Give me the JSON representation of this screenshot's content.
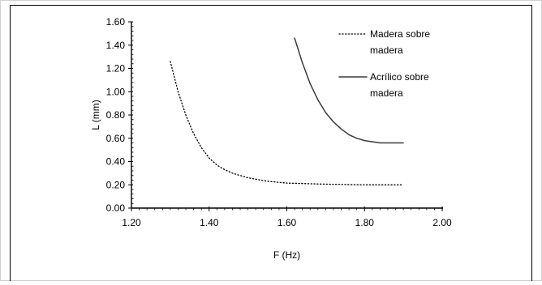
{
  "chart_data": {
    "type": "line",
    "xlabel": "F (Hz)",
    "ylabel": "L (mm)",
    "xlim": [
      1.2,
      2.0
    ],
    "ylim": [
      0.0,
      1.6
    ],
    "x_ticks": [
      "1.20",
      "1.40",
      "1.60",
      "1.80",
      "2.00"
    ],
    "y_ticks": [
      "0.00",
      "0.20",
      "0.40",
      "0.60",
      "0.80",
      "1.00",
      "1.20",
      "1.40",
      "1.60"
    ],
    "grid": false,
    "legend_position": "top-right",
    "series": [
      {
        "name": "Madera sobre madera",
        "style": "dotted",
        "color": "#000000",
        "x": [
          1.3,
          1.32,
          1.34,
          1.36,
          1.38,
          1.4,
          1.42,
          1.44,
          1.46,
          1.48,
          1.5,
          1.55,
          1.6,
          1.65,
          1.7,
          1.8,
          1.9
        ],
        "y": [
          1.26,
          1.0,
          0.8,
          0.64,
          0.52,
          0.43,
          0.37,
          0.33,
          0.3,
          0.28,
          0.26,
          0.23,
          0.215,
          0.21,
          0.205,
          0.2,
          0.2
        ]
      },
      {
        "name": "Acrílico sobre madera",
        "style": "solid",
        "color": "#3a3a3a",
        "x": [
          1.62,
          1.64,
          1.66,
          1.68,
          1.7,
          1.72,
          1.74,
          1.76,
          1.78,
          1.8,
          1.84,
          1.88,
          1.9
        ],
        "y": [
          1.46,
          1.25,
          1.07,
          0.93,
          0.82,
          0.74,
          0.68,
          0.63,
          0.6,
          0.58,
          0.56,
          0.56,
          0.56
        ]
      }
    ],
    "legend": {
      "entries": [
        {
          "lines": [
            "Madera sobre",
            "madera"
          ]
        },
        {
          "lines": [
            "Acrílico sobre",
            "madera"
          ]
        }
      ]
    }
  }
}
